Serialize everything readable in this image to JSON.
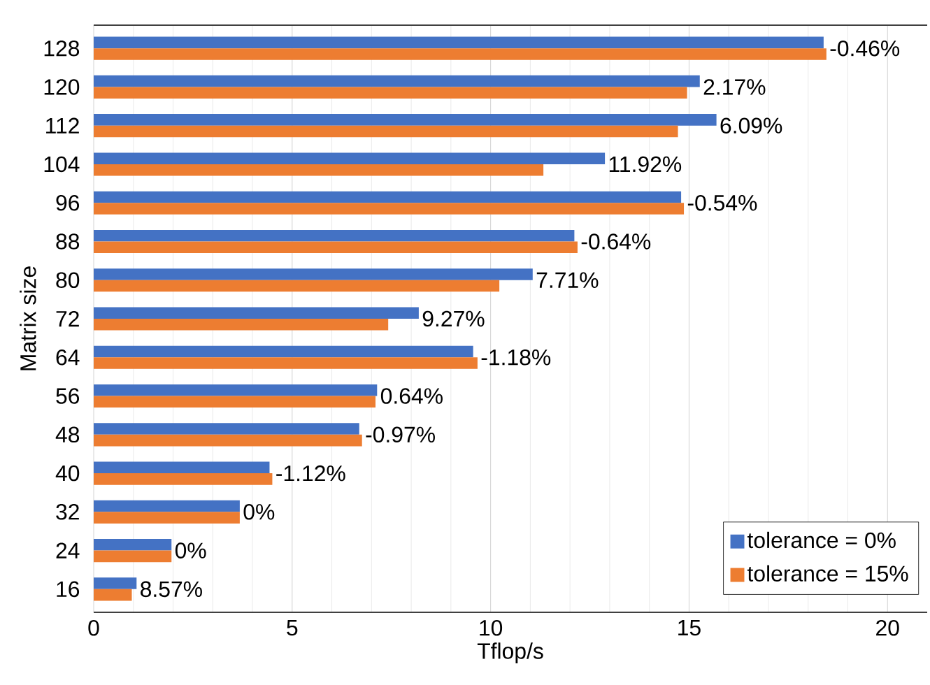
{
  "chart_data": {
    "type": "bar",
    "orientation": "horizontal",
    "xlabel": "Tflop/s",
    "ylabel": "Matrix size",
    "categories": [
      "128",
      "120",
      "112",
      "104",
      "96",
      "88",
      "80",
      "72",
      "64",
      "56",
      "48",
      "40",
      "32",
      "24",
      "16"
    ],
    "series": [
      {
        "name": "tolerance = 0%",
        "color": "#4472c4",
        "values": [
          18.39,
          15.27,
          15.69,
          12.88,
          14.8,
          12.11,
          11.06,
          8.19,
          9.56,
          7.14,
          6.69,
          4.43,
          3.68,
          1.96,
          1.08
        ]
      },
      {
        "name": "tolerance = 15%",
        "color": "#ed7d31",
        "values": [
          18.46,
          14.95,
          14.72,
          11.33,
          14.87,
          12.19,
          10.22,
          7.42,
          9.67,
          7.1,
          6.76,
          4.5,
          3.68,
          1.96,
          0.96
        ]
      }
    ],
    "annotations": [
      {
        "text": "-0.46%",
        "x": 18.46,
        "y": "128"
      },
      {
        "text": "2.17%",
        "x": 15.27,
        "y": "120"
      },
      {
        "text": "6.09%",
        "x": 15.69,
        "y": "112"
      },
      {
        "text": "11.92%",
        "x": 12.88,
        "y": "104"
      },
      {
        "text": "-0.54%",
        "x": 14.87,
        "y": "96"
      },
      {
        "text": "-0.64%",
        "x": 12.19,
        "y": "88"
      },
      {
        "text": "7.71%",
        "x": 11.06,
        "y": "80"
      },
      {
        "text": "9.27%",
        "x": 8.19,
        "y": "72"
      },
      {
        "text": "-1.18%",
        "x": 9.67,
        "y": "64"
      },
      {
        "text": "0.64%",
        "x": 7.14,
        "y": "56"
      },
      {
        "text": "-0.97%",
        "x": 6.76,
        "y": "48"
      },
      {
        "text": "-1.12%",
        "x": 4.5,
        "y": "40"
      },
      {
        "text": "0%",
        "x": 3.68,
        "y": "32"
      },
      {
        "text": "0%",
        "x": 1.96,
        "y": "24"
      },
      {
        "text": "8.57%",
        "x": 1.08,
        "y": "16"
      }
    ],
    "xlim": [
      0,
      21
    ],
    "xticks": [
      0,
      5,
      10,
      15,
      20
    ],
    "grid": "x",
    "legend": "bottom right"
  }
}
